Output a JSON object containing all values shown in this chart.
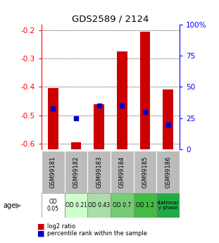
{
  "title": "GDS2589 / 2124",
  "samples": [
    "GSM99181",
    "GSM99182",
    "GSM99183",
    "GSM99184",
    "GSM99185",
    "GSM99186"
  ],
  "age_labels": [
    "OD\n0.05",
    "OD 0.21",
    "OD 0.43",
    "OD 0.7",
    "OD 1.2",
    "stationar\ny phase"
  ],
  "age_colors": [
    "#ffffff",
    "#ccffcc",
    "#aaddaa",
    "#77cc77",
    "#44bb44",
    "#22aa44"
  ],
  "log2_ratio": [
    -0.405,
    -0.595,
    -0.46,
    -0.275,
    -0.205,
    -0.41
  ],
  "percentile_rank": [
    33,
    25,
    35,
    35,
    30,
    20
  ],
  "ylim_left": [
    -0.62,
    -0.18
  ],
  "ylim_right": [
    0,
    100
  ],
  "yticks_left": [
    -0.6,
    -0.5,
    -0.4,
    -0.3,
    -0.2
  ],
  "yticks_right": [
    0,
    25,
    50,
    75,
    100
  ],
  "ytick_labels_right": [
    "0",
    "25",
    "50",
    "75",
    "100%"
  ],
  "bar_color": "#cc0000",
  "dot_color": "#0000cc",
  "sample_box_color": "#bbbbbb",
  "legend_red_label": "log2 ratio",
  "legend_blue_label": "percentile rank within the sample",
  "age_label": "age"
}
